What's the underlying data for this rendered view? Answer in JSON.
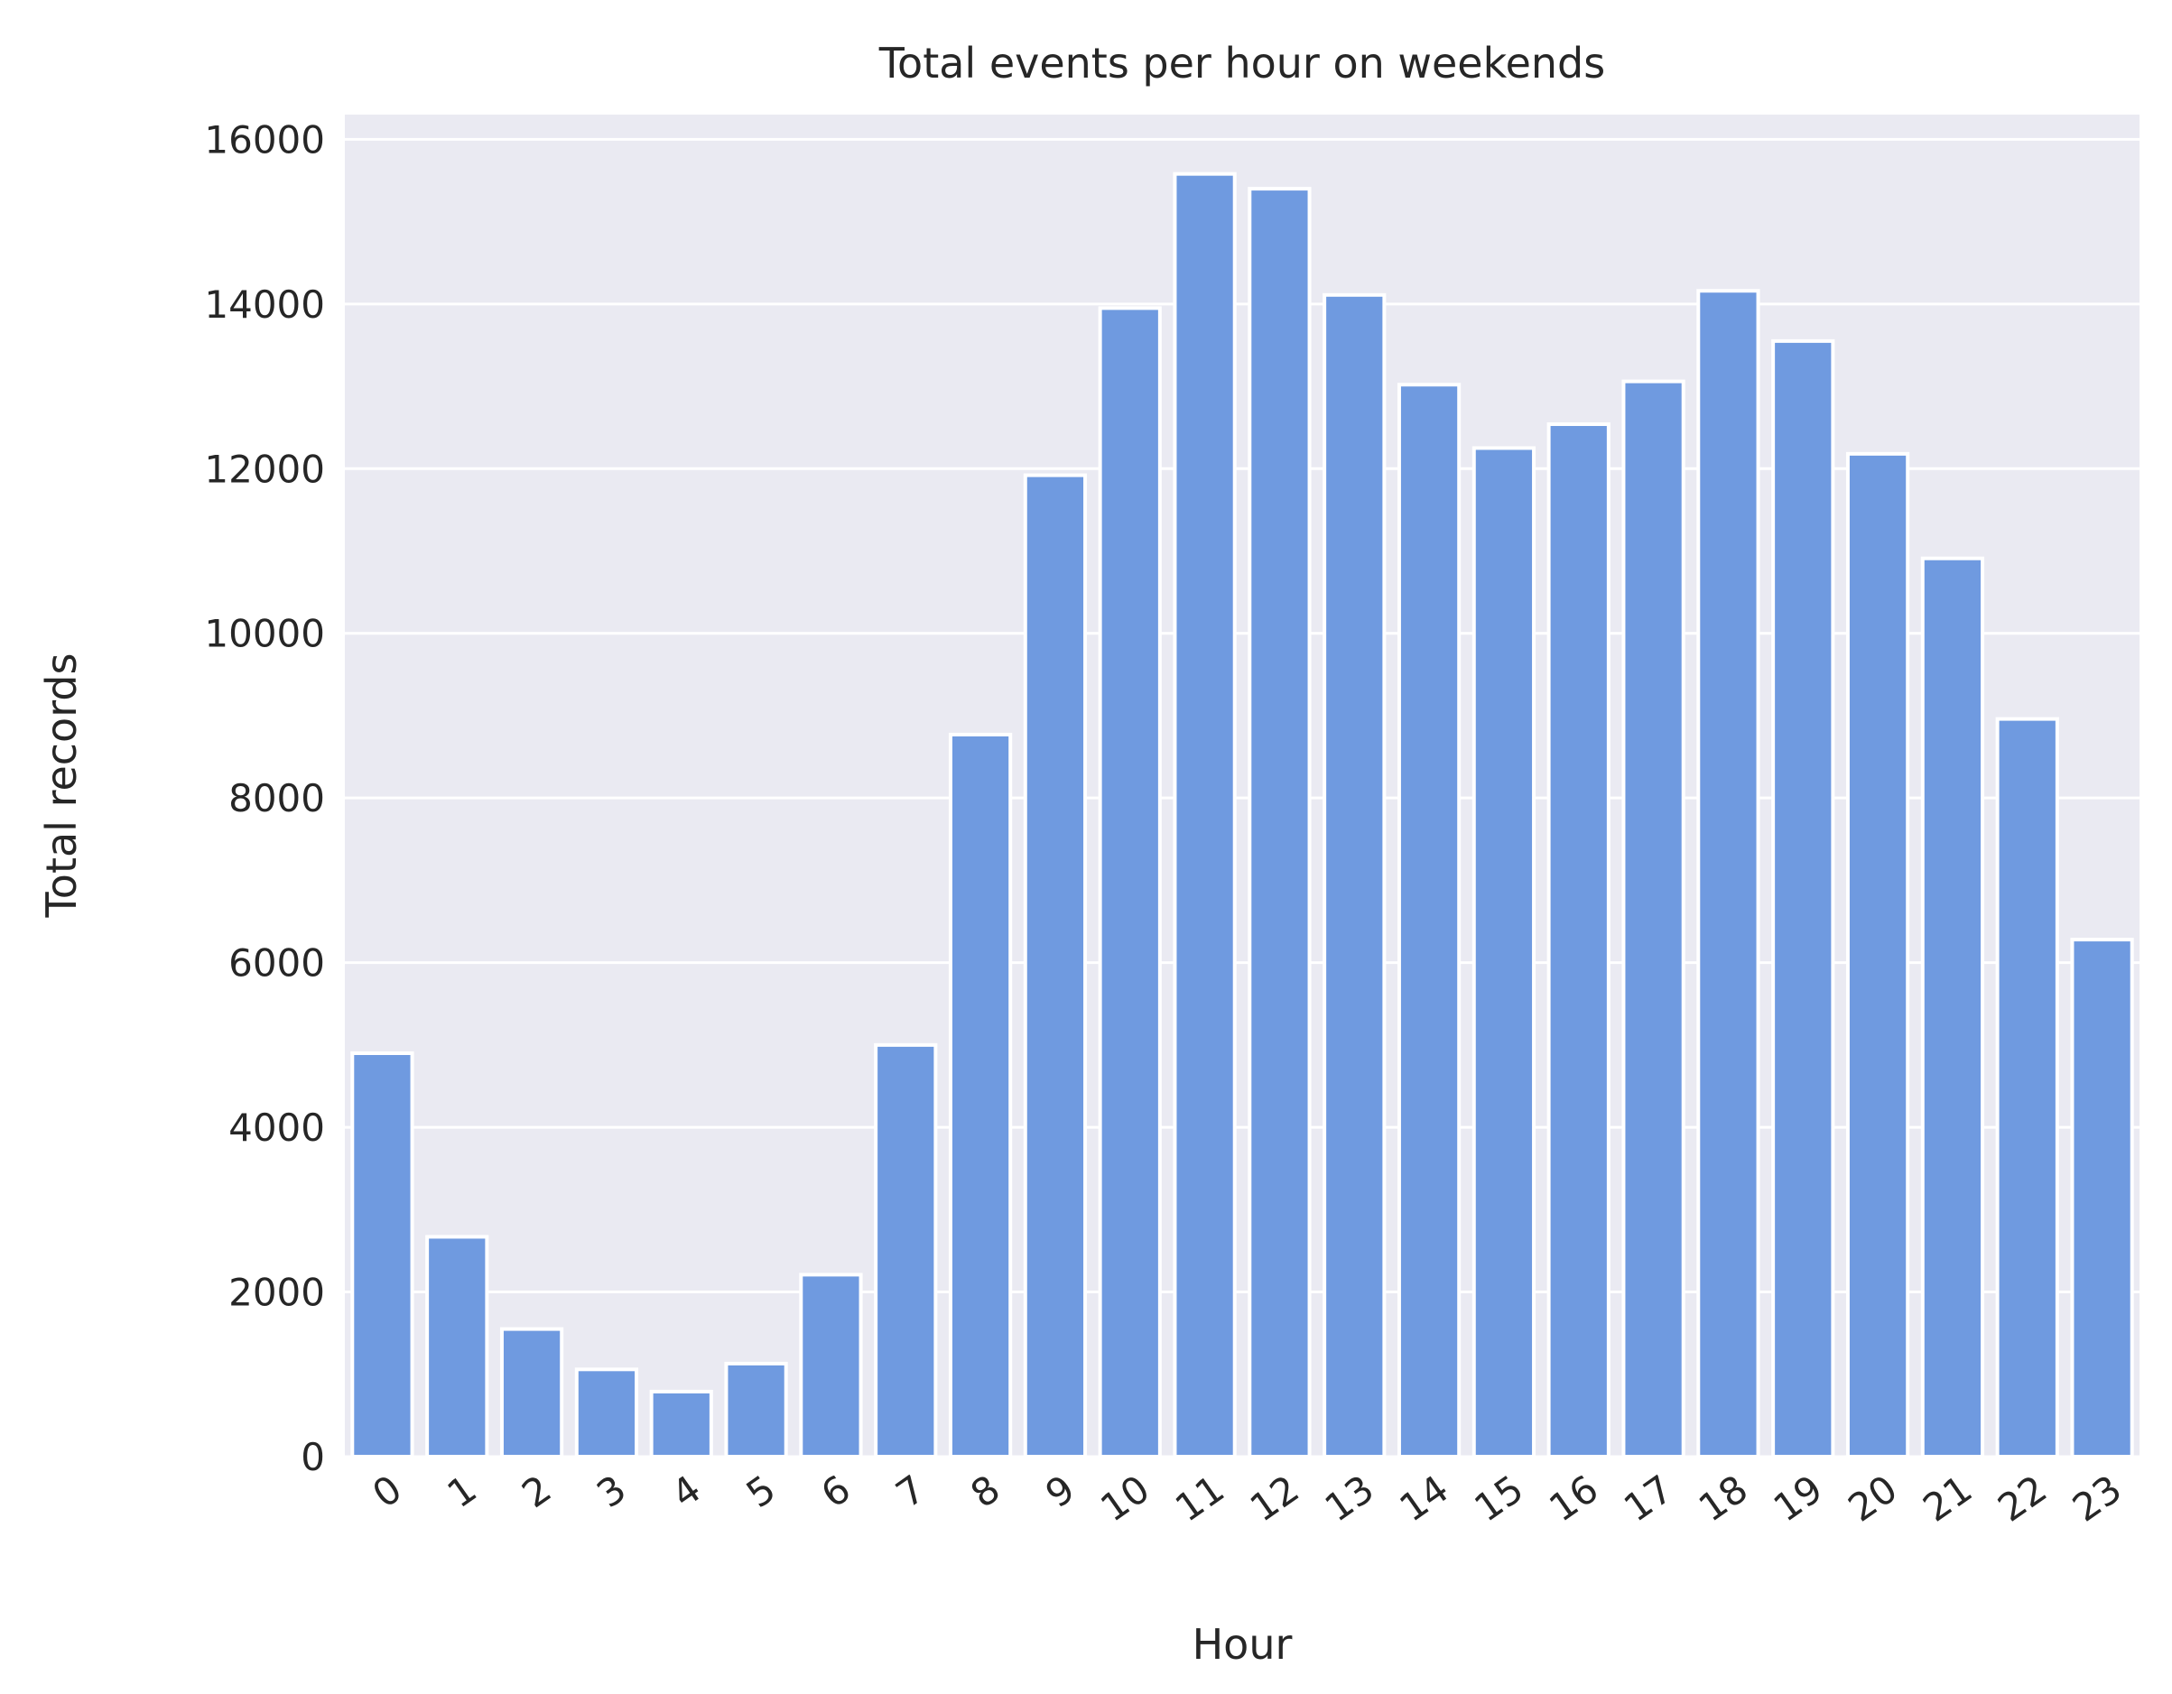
{
  "chart_data": {
    "type": "bar",
    "title": "Total events per hour on weekends",
    "xlabel": "Hour",
    "ylabel": "Total records",
    "categories": [
      "0",
      "1",
      "2",
      "3",
      "4",
      "5",
      "6",
      "7",
      "8",
      "9",
      "10",
      "11",
      "12",
      "13",
      "14",
      "15",
      "16",
      "17",
      "18",
      "19",
      "20",
      "21",
      "22",
      "23"
    ],
    "values": [
      4900,
      2670,
      1550,
      1060,
      790,
      1130,
      2210,
      5000,
      8770,
      11920,
      13950,
      15580,
      15400,
      14110,
      13020,
      12250,
      12540,
      13060,
      14160,
      13550,
      12180,
      10910,
      8960,
      6280
    ],
    "ylim": [
      0,
      16300
    ],
    "yticks": [
      0,
      2000,
      4000,
      6000,
      8000,
      10000,
      12000,
      14000,
      16000
    ],
    "grid": true,
    "bar_color": "#6f9ae0",
    "background_color": "#eaeaf2"
  }
}
